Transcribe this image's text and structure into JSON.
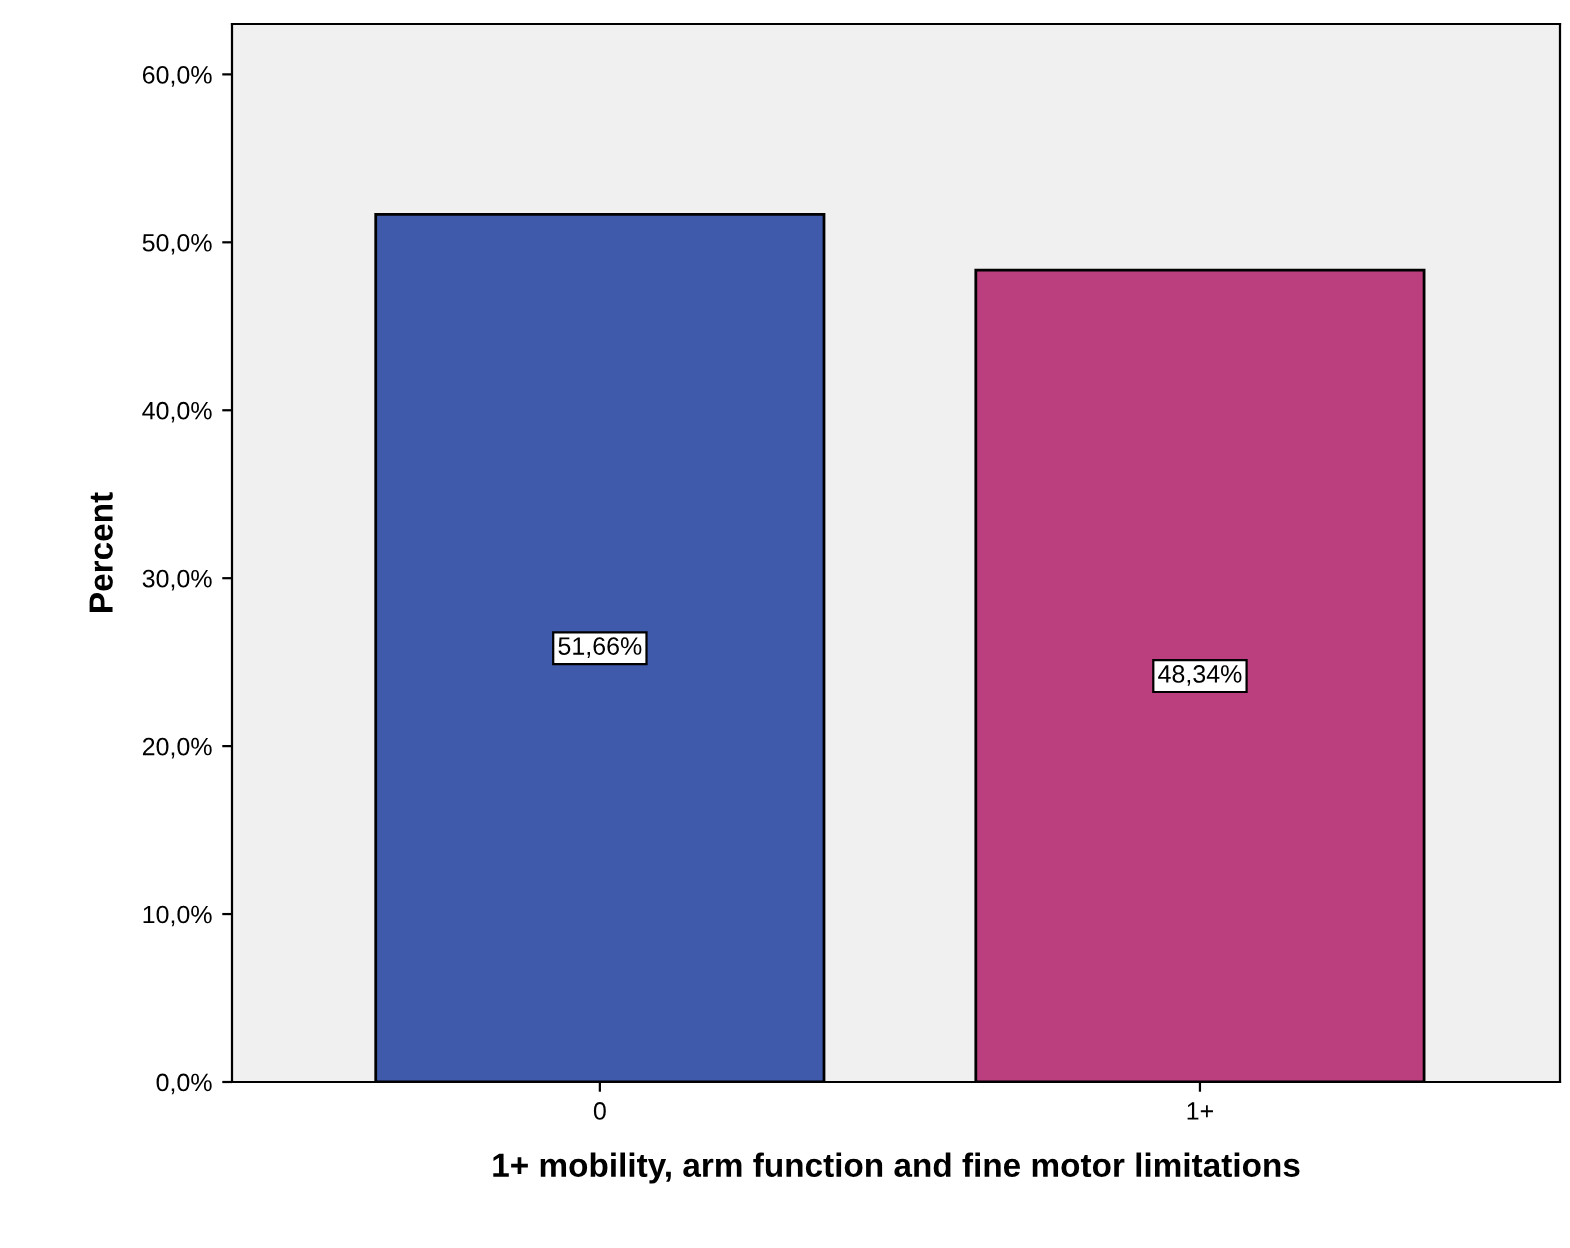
{
  "chart_data": {
    "type": "bar",
    "xlabel": "1+ mobility, arm function and fine motor limitations",
    "ylabel": "Percent",
    "categories": [
      "0",
      "1+"
    ],
    "values": [
      51.66,
      48.34
    ],
    "colors": [
      "#3f5aaa",
      "#bb3f7e"
    ],
    "value_labels": [
      "51,66%",
      "48,34%"
    ],
    "ylim": [
      0,
      63
    ],
    "yticks": [
      {
        "value": 0,
        "label": "0,0%"
      },
      {
        "value": 10,
        "label": "10,0%"
      },
      {
        "value": 20,
        "label": "20,0%"
      },
      {
        "value": 30,
        "label": "30,0%"
      },
      {
        "value": 40,
        "label": "40,0%"
      },
      {
        "value": 50,
        "label": "50,0%"
      },
      {
        "value": 60,
        "label": "60,0%"
      }
    ],
    "grid": false,
    "legend": false
  }
}
